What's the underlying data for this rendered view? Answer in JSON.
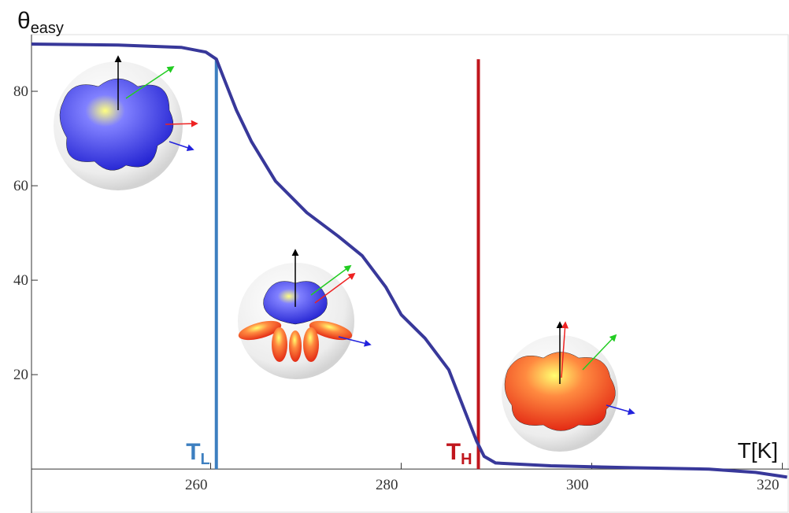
{
  "chart_data": {
    "type": "line",
    "ylabel": "θ",
    "ylabel_sub": "easy",
    "xlabel": "T[K]",
    "x": [
      241.2,
      250.3,
      256.9,
      259.5,
      260.6,
      261.4,
      262.7,
      264.3,
      266.8,
      270.1,
      273.4,
      275.9,
      278.4,
      280.0,
      282.5,
      285.0,
      286.6,
      287.9,
      288.7,
      289.9,
      295.7,
      304.0,
      312.3,
      317.2,
      320.5
    ],
    "values": [
      90,
      89.8,
      89.3,
      88.3,
      86.8,
      82.7,
      76,
      69.3,
      61,
      54.3,
      49.3,
      45.2,
      38.5,
      32.7,
      27.7,
      21,
      12.7,
      6,
      2.7,
      1.3,
      0.7,
      0.3,
      0,
      -0.7,
      -1.7
    ],
    "color": "#38389a",
    "xlim": [
      241.2,
      320.7
    ],
    "ylim": [
      -9.3,
      92
    ],
    "xticks": [
      260,
      280,
      300,
      320
    ],
    "yticks": [
      20,
      40,
      60,
      80
    ],
    "markers": [
      {
        "text": "T",
        "sub": "L",
        "x": 260.6,
        "top": 86.8,
        "color": "#3d7fc0"
      },
      {
        "text": "T",
        "sub": "H",
        "x": 288.1,
        "top": 86.8,
        "color": "#c0161d"
      }
    ]
  }
}
